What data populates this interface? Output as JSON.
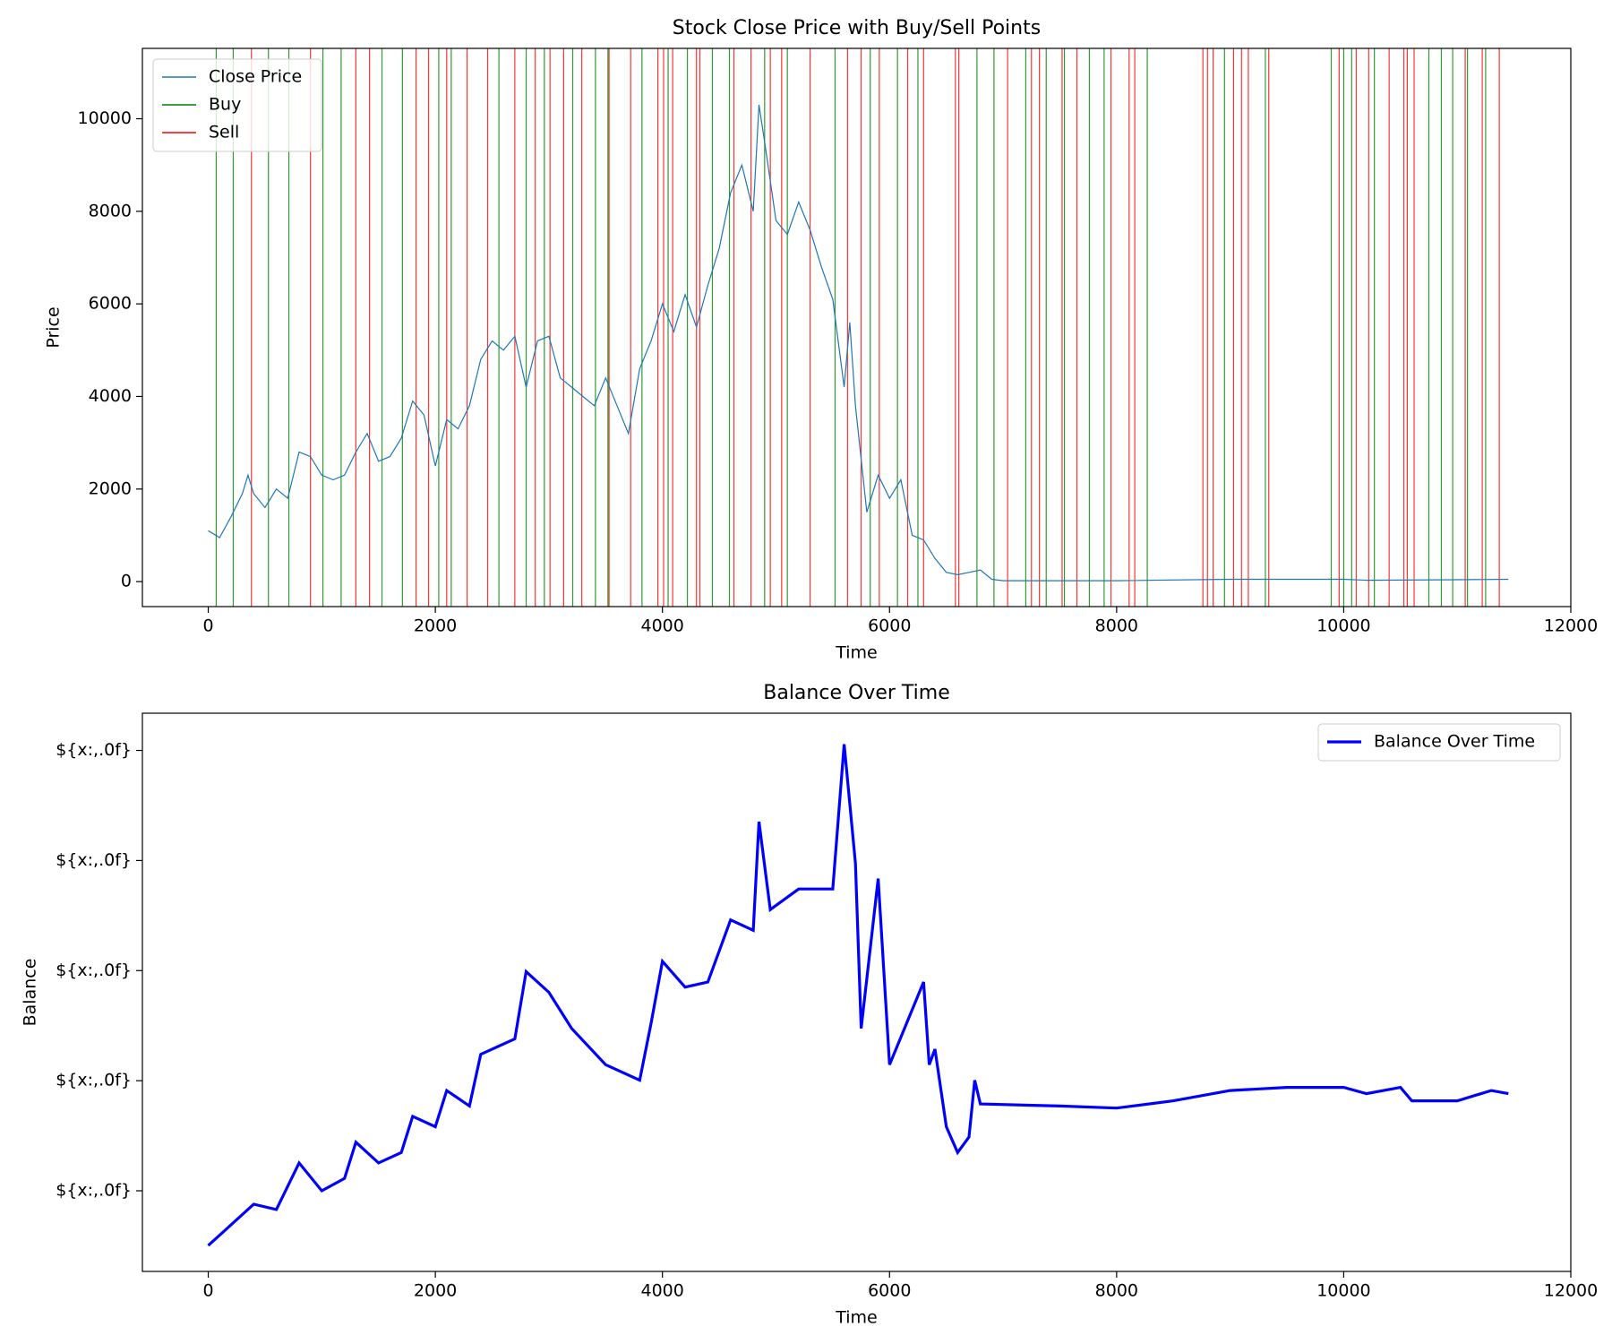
{
  "chart_data": [
    {
      "type": "line",
      "title": "Stock Close Price with Buy/Sell Points",
      "x_label": "Time",
      "y_label": "Price",
      "xlim": [
        -580,
        12000
      ],
      "xticks": [
        0,
        2000,
        4000,
        6000,
        8000,
        10000,
        12000
      ],
      "ylim": [
        -540,
        11520
      ],
      "yticks": [
        0,
        2000,
        4000,
        6000,
        8000,
        10000
      ],
      "legend": "upper left",
      "series": [
        {
          "name": "Close Price",
          "color": "#1f77b4",
          "x": [
            0,
            100,
            200,
            300,
            350,
            400,
            500,
            600,
            700,
            800,
            900,
            1000,
            1100,
            1200,
            1300,
            1400,
            1500,
            1600,
            1700,
            1800,
            1900,
            2000,
            2100,
            2200,
            2300,
            2400,
            2500,
            2600,
            2700,
            2800,
            2900,
            3000,
            3100,
            3200,
            3300,
            3400,
            3500,
            3600,
            3700,
            3800,
            3900,
            4000,
            4100,
            4200,
            4300,
            4400,
            4500,
            4600,
            4700,
            4800,
            4850,
            4900,
            5000,
            5100,
            5200,
            5300,
            5400,
            5500,
            5600,
            5650,
            5700,
            5800,
            5900,
            6000,
            6100,
            6200,
            6300,
            6400,
            6500,
            6600,
            6700,
            6800,
            6900,
            7000,
            8000,
            9000,
            10000,
            10200,
            11000,
            11450
          ],
          "values": [
            1100,
            950,
            1400,
            1900,
            2300,
            1900,
            1600,
            2000,
            1800,
            2800,
            2700,
            2300,
            2200,
            2300,
            2800,
            3200,
            2600,
            2700,
            3100,
            3900,
            3600,
            2500,
            3500,
            3300,
            3800,
            4800,
            5200,
            5000,
            5300,
            4200,
            5200,
            5300,
            4400,
            4200,
            4000,
            3800,
            4400,
            3800,
            3200,
            4600,
            5200,
            6000,
            5400,
            6200,
            5500,
            6400,
            7200,
            8400,
            9000,
            8000,
            10300,
            9500,
            7800,
            7500,
            8200,
            7600,
            6800,
            6100,
            4200,
            5600,
            3800,
            1500,
            2300,
            1800,
            2200,
            1000,
            900,
            500,
            200,
            150,
            200,
            250,
            50,
            20,
            20,
            50,
            50,
            30,
            40,
            50
          ]
        }
      ],
      "vlines": [
        {
          "name": "Buy",
          "color": "#008000",
          "x": [
            70,
            220,
            530,
            710,
            1010,
            1170,
            1530,
            1710,
            2030,
            2140,
            2560,
            2800,
            2960,
            3210,
            3410,
            3520,
            3820,
            4050,
            4220,
            4440,
            4590,
            4900,
            5100,
            5520,
            5830,
            6070,
            6250,
            6770,
            6920,
            7200,
            7380,
            7540,
            7760,
            7890,
            8270,
            8950,
            9310,
            9890,
            10000,
            10070,
            10270,
            10750,
            10860,
            10960,
            11090,
            11250
          ]
        },
        {
          "name": "Sell",
          "color": "#ff0000",
          "x": [
            380,
            900,
            1300,
            1420,
            1830,
            1940,
            2100,
            2280,
            2460,
            2700,
            2880,
            3010,
            3130,
            3290,
            3530,
            3720,
            3960,
            4010,
            4090,
            4300,
            4330,
            4630,
            4780,
            4950,
            5050,
            5300,
            5630,
            5750,
            5910,
            6160,
            6300,
            6580,
            6610,
            7040,
            7250,
            7320,
            7520,
            7650,
            7950,
            8110,
            8160,
            8760,
            8800,
            8850,
            9030,
            9100,
            9160,
            9340,
            9960,
            10110,
            10220,
            10400,
            10530,
            10560,
            10620,
            11070,
            11220,
            11370
          ]
        }
      ]
    },
    {
      "type": "line",
      "title": "Balance Over Time",
      "x_label": "Time",
      "y_label": "Balance",
      "xlim": [
        -580,
        12000
      ],
      "xticks": [
        0,
        2000,
        4000,
        6000,
        8000,
        10000,
        12000
      ],
      "ylim": [
        5350,
        106760
      ],
      "yticks": [
        {
          "value": 20000,
          "label": "${x:,.0f}"
        },
        {
          "value": 40000,
          "label": "${x:,.0f}"
        },
        {
          "value": 60000,
          "label": "${x:,.0f}"
        },
        {
          "value": 80000,
          "label": "${x:,.0f}"
        },
        {
          "value": 100000,
          "label": "${x:,.0f}"
        }
      ],
      "legend": "upper right",
      "series": [
        {
          "name": "Balance Over Time",
          "color": "#0000ff",
          "x": [
            0,
            200,
            400,
            600,
            800,
            1000,
            1200,
            1300,
            1500,
            1700,
            1800,
            2000,
            2100,
            2300,
            2400,
            2500,
            2700,
            2800,
            3000,
            3200,
            3500,
            3800,
            3900,
            4000,
            4200,
            4400,
            4600,
            4800,
            4850,
            4950,
            5200,
            5500,
            5600,
            5700,
            5750,
            5900,
            6000,
            6300,
            6350,
            6400,
            6500,
            6600,
            6700,
            6750,
            6800,
            7500,
            8000,
            8500,
            9000,
            9500,
            10000,
            10200,
            10500,
            10600,
            11000,
            11300,
            11450
          ],
          "values": [
            10050,
            13800,
            17560,
            16600,
            25070,
            20000,
            22250,
            28830,
            25070,
            26950,
            33520,
            31640,
            38220,
            35400,
            44790,
            45730,
            47610,
            59810,
            56060,
            49490,
            42910,
            40090,
            50420,
            61690,
            57000,
            57930,
            69200,
            67320,
            87040,
            71080,
            74830,
            74830,
            101130,
            79530,
            49490,
            76710,
            42910,
            57930,
            42910,
            45730,
            31640,
            26950,
            29770,
            40090,
            35770,
            35400,
            35020,
            36340,
            38220,
            38780,
            38780,
            37650,
            38780,
            36340,
            36340,
            38220,
            37650
          ]
        }
      ]
    }
  ]
}
